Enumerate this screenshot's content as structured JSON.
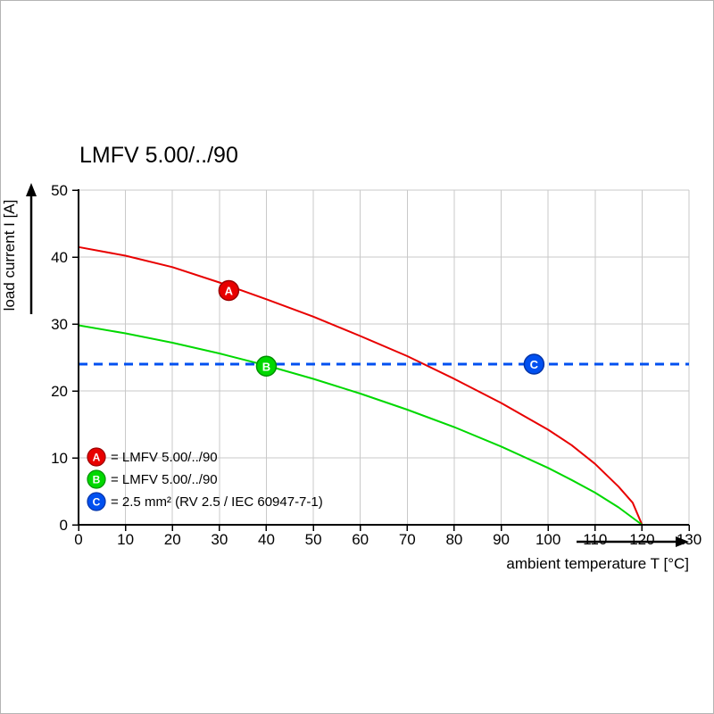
{
  "chart_data": {
    "type": "line",
    "title": "LMFV 5.00/../90",
    "xlabel": "ambient temperature T [°C]",
    "ylabel": "load current I [A]",
    "xlim": [
      0,
      130
    ],
    "ylim": [
      0,
      50
    ],
    "xticks": [
      0,
      10,
      20,
      30,
      40,
      50,
      60,
      70,
      80,
      90,
      100,
      110,
      120,
      130
    ],
    "yticks": [
      0,
      10,
      20,
      30,
      40,
      50
    ],
    "grid": true,
    "grid_color": "#c9c9c9",
    "axis_color": "#000000",
    "legend_position": "bottom-left-inside",
    "series": [
      {
        "name": "A",
        "legend_text": "= LMFV 5.00/../90",
        "color": "#e80000",
        "edge": "#9a0000",
        "style": "solid",
        "width": 2,
        "points": [
          [
            0,
            41.5
          ],
          [
            10,
            40.2
          ],
          [
            20,
            38.5
          ],
          [
            30,
            36.2
          ],
          [
            40,
            33.7
          ],
          [
            50,
            31.1
          ],
          [
            60,
            28.2
          ],
          [
            70,
            25.2
          ],
          [
            80,
            21.8
          ],
          [
            90,
            18.2
          ],
          [
            100,
            14.2
          ],
          [
            105,
            11.9
          ],
          [
            110,
            9.1
          ],
          [
            115,
            5.7
          ],
          [
            118,
            3.3
          ],
          [
            120,
            0
          ]
        ],
        "marker": {
          "x": 32,
          "y": 35
        }
      },
      {
        "name": "B",
        "legend_text": "= LMFV 5.00/../90",
        "color": "#00d800",
        "edge": "#009000",
        "style": "solid",
        "width": 2,
        "points": [
          [
            0,
            29.8
          ],
          [
            10,
            28.6
          ],
          [
            20,
            27.2
          ],
          [
            30,
            25.6
          ],
          [
            40,
            23.8
          ],
          [
            50,
            21.8
          ],
          [
            60,
            19.6
          ],
          [
            70,
            17.2
          ],
          [
            80,
            14.6
          ],
          [
            90,
            11.7
          ],
          [
            100,
            8.5
          ],
          [
            105,
            6.7
          ],
          [
            110,
            4.8
          ],
          [
            115,
            2.6
          ],
          [
            120,
            0
          ]
        ],
        "marker": {
          "x": 40,
          "y": 23.7
        }
      },
      {
        "name": "C",
        "legend_text": "= 2.5 mm² (RV 2.5 / IEC 60947-7-1)",
        "color": "#0050f0",
        "edge": "#0033a8",
        "style": "dashed",
        "width": 3,
        "points": [
          [
            0,
            24
          ],
          [
            130,
            24
          ]
        ],
        "marker": {
          "x": 97,
          "y": 24
        }
      }
    ]
  }
}
